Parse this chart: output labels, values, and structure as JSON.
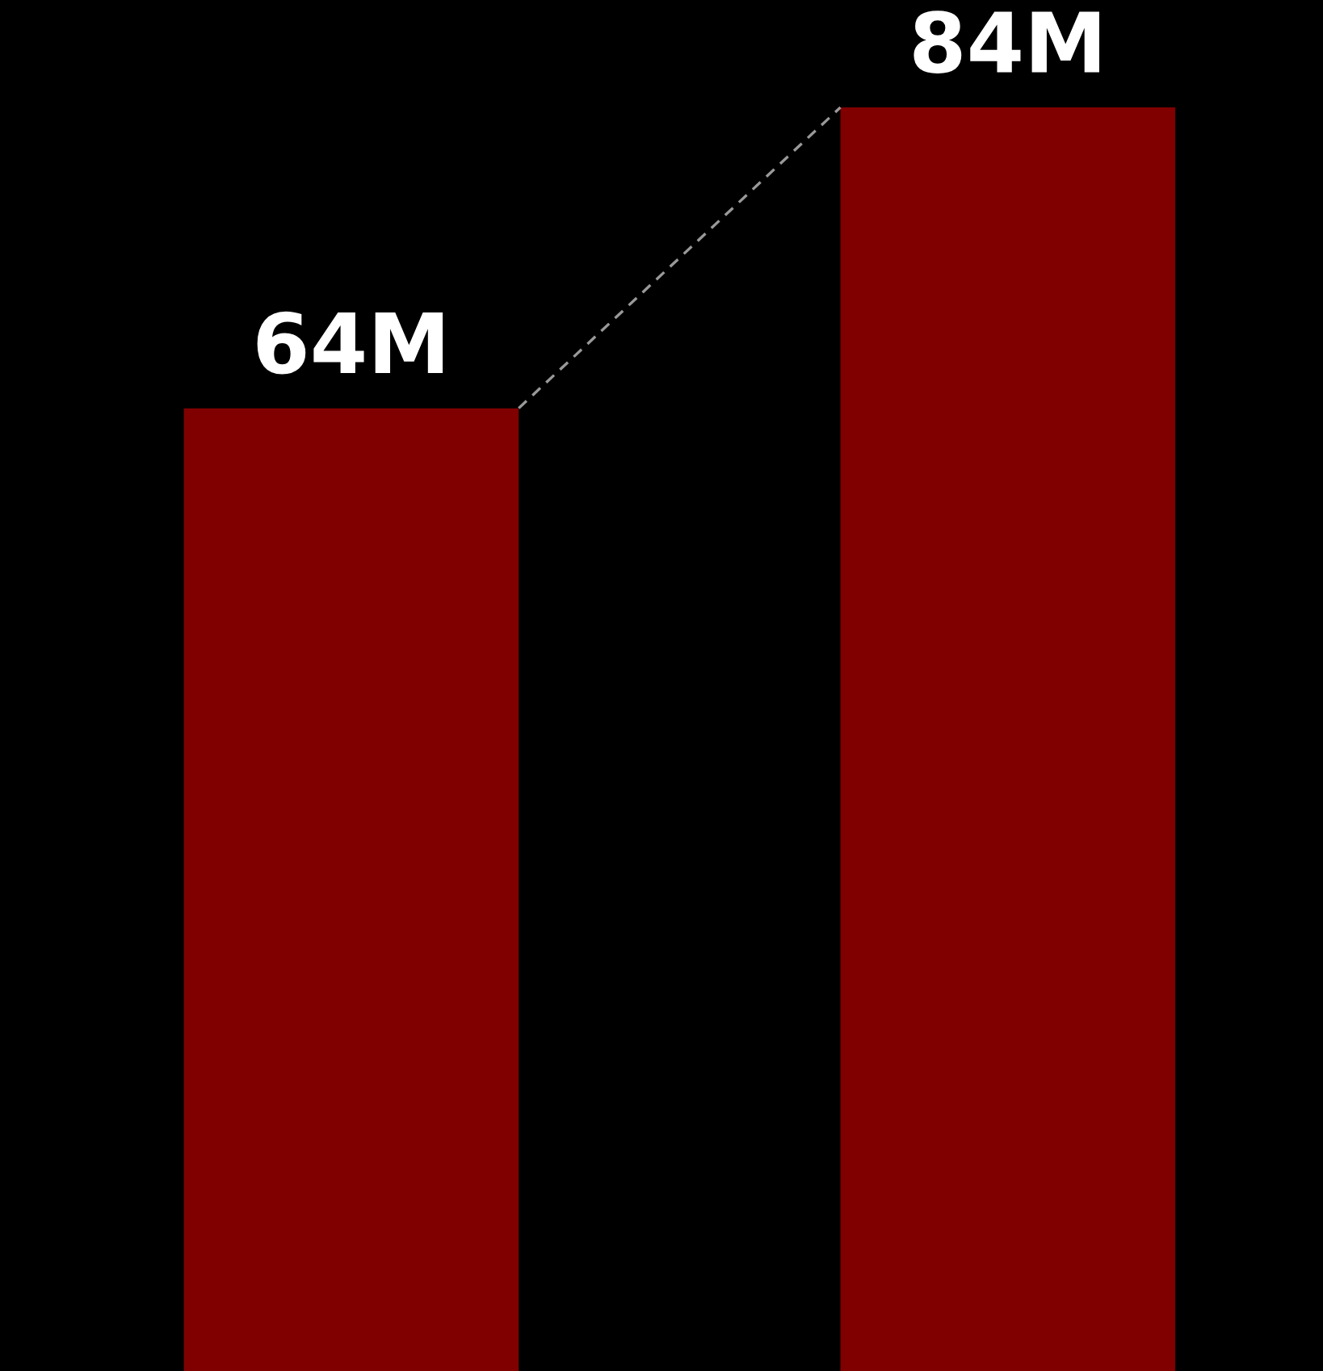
{
  "chart_data": {
    "type": "bar",
    "categories": [
      null,
      null
    ],
    "values": [
      64,
      84
    ],
    "value_labels": [
      "64M",
      "84M"
    ],
    "color": "#800000"
  }
}
